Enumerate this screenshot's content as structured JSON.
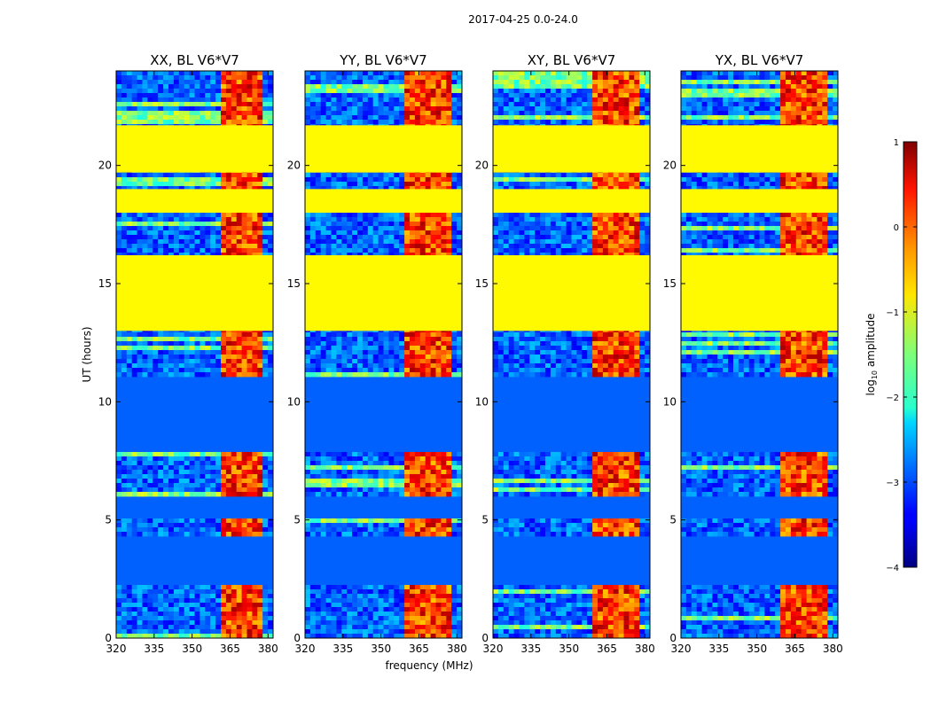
{
  "suptitle": "2017-04-25 0.0-24.0",
  "chart_data": {
    "type": "heatmap",
    "xlabel": "frequency (MHz)",
    "ylabel": "UT (hours)",
    "xlim": [
      320,
      382
    ],
    "ylim": [
      0,
      24
    ],
    "xticks": [
      320,
      335,
      350,
      365,
      380
    ],
    "yticks": [
      0,
      5,
      10,
      15,
      20
    ],
    "panels": [
      {
        "title": "XX, BL V6*V7",
        "rfi_band": [
          361,
          377
        ]
      },
      {
        "title": "YY, BL V6*V7",
        "rfi_band": [
          360,
          377
        ]
      },
      {
        "title": "XY, BL V6*V7",
        "rfi_band": [
          360,
          377
        ]
      },
      {
        "title": "YX, BL V6*V7",
        "rfi_band": [
          360,
          377
        ]
      }
    ],
    "flagged_hours": [
      [
        13.0,
        15.6
      ],
      [
        15.6,
        16.2
      ],
      [
        18.0,
        19.0
      ],
      [
        19.7,
        21.7
      ]
    ],
    "flag_value": -0.85,
    "background_level": -2.9,
    "rfi_level": 0.1,
    "colorbar": {
      "label_prefix": "log",
      "label_sub": "10",
      "label_suffix": " amplitude",
      "range": [
        -4,
        1
      ],
      "ticks": [
        -4,
        -3,
        -2,
        -1,
        0,
        1
      ],
      "tick_labels": [
        "−4",
        "−3",
        "−2",
        "−1",
        "0",
        "1"
      ],
      "colormap": "jet"
    }
  }
}
